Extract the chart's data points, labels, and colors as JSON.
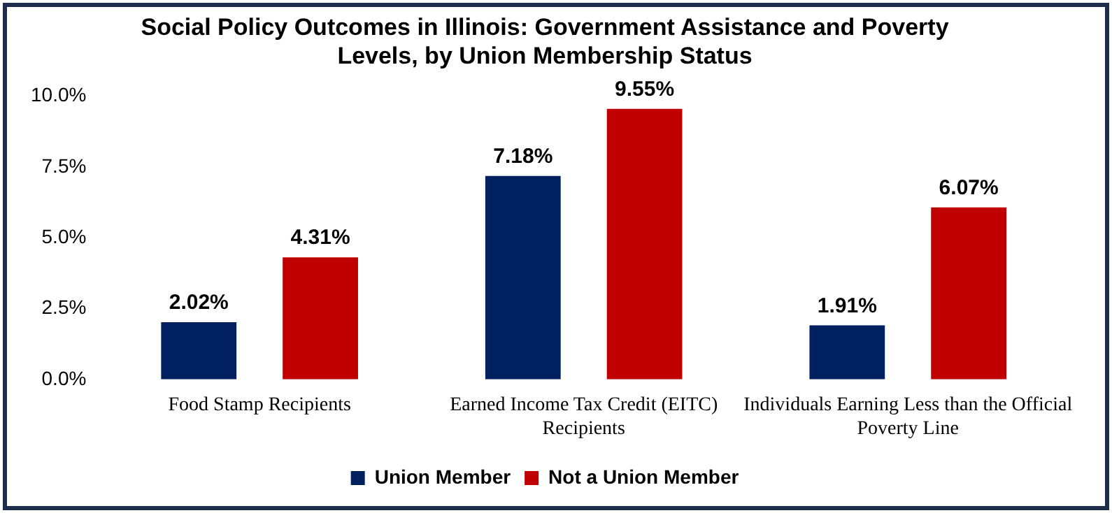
{
  "chart_data": {
    "type": "bar",
    "title": "Social Policy Outcomes in Illinois: Government Assistance and Poverty Levels, by Union Membership Status",
    "categories": [
      "Food Stamp Recipients",
      "Earned Income Tax Credit (EITC) Recipients",
      "Individuals Earning Less than the Official Poverty Line"
    ],
    "series": [
      {
        "name": "Union Member",
        "color": "#002060",
        "values": [
          2.02,
          7.18,
          1.91
        ],
        "value_labels": [
          "2.02%",
          "7.18%",
          "1.91%"
        ]
      },
      {
        "name": "Not a Union Member",
        "color": "#c00000",
        "values": [
          4.31,
          9.55,
          6.07
        ],
        "value_labels": [
          "4.31%",
          "9.55%",
          "6.07%"
        ]
      }
    ],
    "ylim": [
      0,
      10
    ],
    "yticks": [
      {
        "value": 0,
        "label": "0.0%"
      },
      {
        "value": 2.5,
        "label": "2.5%"
      },
      {
        "value": 5,
        "label": "5.0%"
      },
      {
        "value": 7.5,
        "label": "7.5%"
      },
      {
        "value": 10,
        "label": "10.0%"
      }
    ],
    "grid": false,
    "legend": "bottom"
  }
}
